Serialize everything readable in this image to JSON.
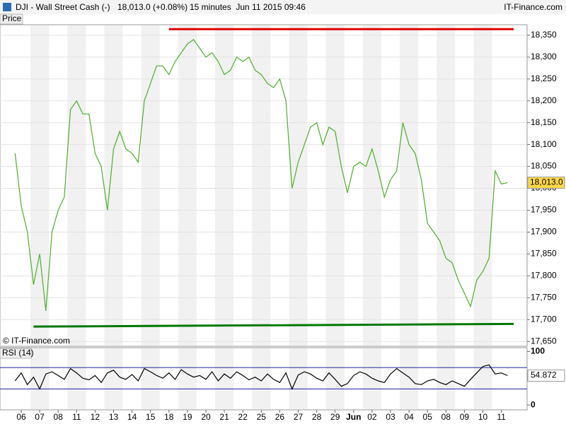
{
  "header": {
    "instrument": "DJI - Wall Street Cash (-)",
    "quote": "18,013.0 (+0.08%)",
    "period": "15 minutes  Jun 11 2015 09:46",
    "brand": "IT-Finance.com"
  },
  "chart_data": [
    {
      "type": "line",
      "title": "Price",
      "watermark": "© IT-Finance.com",
      "color": "#4caf2a",
      "values": [
        18080,
        17960,
        17900,
        17780,
        17850,
        17720,
        17900,
        17950,
        17980,
        18180,
        18200,
        18170,
        18170,
        18080,
        18050,
        17950,
        18090,
        18130,
        18090,
        18080,
        18060,
        18200,
        18240,
        18280,
        18280,
        18260,
        18290,
        18310,
        18330,
        18340,
        18320,
        18300,
        18310,
        18290,
        18260,
        18270,
        18300,
        18290,
        18300,
        18270,
        18260,
        18240,
        18230,
        18250,
        18200,
        18000,
        18060,
        18100,
        18140,
        18150,
        18100,
        18140,
        18130,
        18050,
        17990,
        18050,
        18060,
        18050,
        18090,
        18040,
        17980,
        18020,
        18040,
        18150,
        18100,
        18080,
        18020,
        17920,
        17900,
        17880,
        17840,
        17830,
        17790,
        17760,
        17730,
        17790,
        17810,
        17840,
        18040,
        18010,
        18013
      ],
      "ylim": [
        17639,
        18374
      ],
      "yticks": [
        {
          "value": 17650,
          "label": "17,650"
        },
        {
          "value": 17700,
          "label": "17,700"
        },
        {
          "value": 17750,
          "label": "17,750"
        },
        {
          "value": 17800,
          "label": "17,800"
        },
        {
          "value": 17850,
          "label": "17,850"
        },
        {
          "value": 17900,
          "label": "17,900"
        },
        {
          "value": 17950,
          "label": "17,950"
        },
        {
          "value": 18000,
          "label": "18,000"
        },
        {
          "value": 18050,
          "label": "18,050"
        },
        {
          "value": 18100,
          "label": "18,100"
        },
        {
          "value": 18150,
          "label": "18,150"
        },
        {
          "value": 18200,
          "label": "18,200"
        },
        {
          "value": 18250,
          "label": "18,250"
        },
        {
          "value": 18300,
          "label": "18,300"
        },
        {
          "value": 18350,
          "label": "18,350"
        }
      ],
      "grid": true,
      "last_value": {
        "value": 18013.0,
        "label": "18,013.0"
      },
      "reference_lines": [
        {
          "color": "#e00000",
          "x": [
            25,
            81
          ],
          "y": [
            18364,
            18364
          ]
        },
        {
          "color": "#007700",
          "x": [
            3,
            81
          ],
          "y": [
            17684,
            17690
          ]
        }
      ]
    },
    {
      "type": "line",
      "title": "RSI (14)",
      "color": "#000000",
      "categories": [
        null,
        "06",
        null,
        null,
        "07",
        null,
        null,
        "08",
        null,
        null,
        "11",
        null,
        null,
        "12",
        null,
        null,
        "13",
        null,
        null,
        "14",
        null,
        null,
        "15",
        null,
        null,
        "18",
        null,
        null,
        "19",
        null,
        null,
        "20",
        null,
        null,
        "21",
        null,
        null,
        "22",
        null,
        null,
        "25",
        null,
        null,
        "26",
        null,
        null,
        "27",
        null,
        null,
        "28",
        null,
        null,
        "29",
        null,
        null,
        "Jun",
        null,
        null,
        "02",
        null,
        null,
        "03",
        null,
        null,
        "04",
        null,
        null,
        "05",
        null,
        null,
        "08",
        null,
        null,
        "09",
        null,
        null,
        "10",
        null,
        null,
        "11",
        null
      ],
      "values": [
        45,
        60,
        38,
        52,
        30,
        58,
        62,
        55,
        48,
        68,
        60,
        50,
        47,
        55,
        42,
        60,
        65,
        52,
        48,
        57,
        45,
        68,
        62,
        55,
        50,
        60,
        48,
        66,
        58,
        52,
        55,
        48,
        62,
        45,
        58,
        50,
        62,
        55,
        47,
        52,
        45,
        58,
        48,
        42,
        60,
        30,
        56,
        62,
        58,
        50,
        45,
        60,
        48,
        35,
        40,
        55,
        62,
        58,
        50,
        45,
        42,
        58,
        68,
        60,
        52,
        40,
        38,
        45,
        48,
        42,
        38,
        45,
        40,
        35,
        48,
        60,
        72,
        75,
        58,
        60,
        54.872
      ],
      "ylim": [
        -9,
        107
      ],
      "yticks": [
        0,
        100
      ],
      "levels": [
        {
          "value": 70,
          "color": "#2020a0"
        },
        {
          "value": 30,
          "color": "#2020a0"
        }
      ],
      "last_value": 54.872
    }
  ]
}
